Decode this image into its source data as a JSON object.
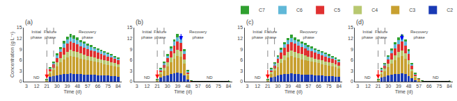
{
  "chart_data": [
    {
      "type": "bar",
      "stacked": true,
      "title": "(a)",
      "x": [
        3,
        12,
        21,
        24,
        27,
        30,
        33,
        36,
        39,
        42,
        45,
        48,
        51,
        54,
        57,
        60,
        63,
        66,
        69,
        72,
        75,
        78,
        81,
        84
      ],
      "series": [
        {
          "name": "C2",
          "color": "#1a3ab5",
          "values": [
            0,
            0,
            0.15,
            1.3,
            1.5,
            1.8,
            2.0,
            2.1,
            2.2,
            2.3,
            2.2,
            2.2,
            2.1,
            2.0,
            2.0,
            1.9,
            1.9,
            1.8,
            1.8,
            1.7,
            1.7,
            1.6,
            1.5,
            1.4
          ]
        },
        {
          "name": "C3",
          "color": "#c8a030",
          "values": [
            0,
            0,
            0.2,
            1.1,
            1.7,
            2.5,
            3.3,
            4.0,
            4.6,
            4.9,
            4.7,
            4.5,
            4.3,
            4.1,
            3.9,
            3.8,
            3.6,
            3.5,
            3.3,
            3.2,
            3.0,
            2.9,
            2.7,
            2.6
          ]
        },
        {
          "name": "C4",
          "color": "#b8c870",
          "values": [
            0,
            0,
            0.05,
            0.5,
            0.7,
            1.0,
            1.2,
            1.4,
            1.5,
            1.6,
            1.6,
            1.5,
            1.4,
            1.4,
            1.3,
            1.2,
            1.2,
            1.1,
            1.1,
            1.0,
            1.0,
            0.9,
            0.9,
            0.8
          ]
        },
        {
          "name": "C5",
          "color": "#e03030",
          "values": [
            0,
            0,
            0.1,
            0.6,
            0.9,
            1.3,
            1.7,
            2.0,
            2.2,
            2.4,
            2.3,
            2.2,
            2.1,
            2.0,
            1.9,
            1.8,
            1.7,
            1.6,
            1.5,
            1.4,
            1.3,
            1.3,
            1.2,
            1.1
          ]
        },
        {
          "name": "C6",
          "color": "#60b8d8",
          "values": [
            0,
            0,
            0.05,
            0.3,
            0.5,
            0.7,
            0.9,
            1.1,
            1.2,
            1.2,
            1.2,
            1.1,
            1.0,
            1.0,
            0.9,
            0.9,
            0.8,
            0.8,
            0.7,
            0.7,
            0.7,
            0.6,
            0.6,
            0.5
          ]
        },
        {
          "name": "C7",
          "color": "#30a030",
          "values": [
            0,
            0,
            0.05,
            0.2,
            0.3,
            0.5,
            0.6,
            0.7,
            0.8,
            0.9,
            0.8,
            0.8,
            0.7,
            0.7,
            0.6,
            0.6,
            0.5,
            0.5,
            0.5,
            0.4,
            0.4,
            0.4,
            0.3,
            0.3
          ]
        }
      ],
      "xlabel": "Time (d)",
      "ylabel": "Concentration (g L⁻¹)",
      "xlim": [
        0.5,
        87
      ],
      "xticks": [
        3,
        12,
        21,
        30,
        39,
        48,
        57,
        66,
        75,
        84
      ],
      "ylim": [
        0,
        15
      ],
      "yticks": [
        0,
        3,
        6,
        9,
        12,
        15
      ],
      "grid": false,
      "legend": "upper right",
      "vlines": [
        {
          "x": 21,
          "color": "#888888"
        },
        {
          "x": 27,
          "color": "#888888"
        }
      ],
      "annotations": [
        {
          "text": "Initial\nphase",
          "x": 12,
          "y": 14.8
        },
        {
          "text": "Failure\nphase",
          "x": 24,
          "y": 14.8
        },
        {
          "text": "Recovery\nphase",
          "x": 57,
          "y": 14.8
        },
        {
          "text": "ND",
          "x": 12,
          "y": 0.25
        }
      ],
      "arrows": [
        {
          "x": 21,
          "y_start": 3.8,
          "y_end": 0.8,
          "color": "red"
        }
      ]
    },
    {
      "type": "bar",
      "stacked": true,
      "title": "(b)",
      "x": [
        3,
        12,
        21,
        24,
        27,
        30,
        33,
        36,
        39,
        42,
        45,
        48,
        51,
        54,
        57,
        60,
        63,
        66,
        69,
        72,
        75,
        78,
        81,
        84
      ],
      "series": [
        {
          "name": "C2",
          "color": "#1a3ab5",
          "values": [
            0,
            0,
            0.15,
            1.2,
            1.5,
            1.8,
            2.1,
            2.3,
            2.5,
            2.4,
            1.8,
            0.6,
            0.05,
            0.02,
            0.02,
            0.02,
            0.02,
            0.02,
            0.02,
            0.02,
            0.02,
            0.02,
            0.02,
            0.02
          ]
        },
        {
          "name": "C3",
          "color": "#c8a030",
          "values": [
            0,
            0,
            0.2,
            1.0,
            1.6,
            2.4,
            3.2,
            4.0,
            4.7,
            4.5,
            3.2,
            1.1,
            0.08,
            0.04,
            0.03,
            0.03,
            0.03,
            0.03,
            0.03,
            0.03,
            0.03,
            0.03,
            0.03,
            0.03
          ]
        },
        {
          "name": "C4",
          "color": "#b8c870",
          "values": [
            0,
            0,
            0.05,
            0.5,
            0.8,
            1.1,
            1.4,
            1.6,
            1.7,
            1.6,
            1.1,
            0.4,
            0.03,
            0.02,
            0.01,
            0.01,
            0.01,
            0.01,
            0.01,
            0.01,
            0.01,
            0.01,
            0.01,
            0.01
          ]
        },
        {
          "name": "C5",
          "color": "#e03030",
          "values": [
            0,
            0,
            0.1,
            0.5,
            0.8,
            1.2,
            1.7,
            2.1,
            2.3,
            2.2,
            1.6,
            0.5,
            0.04,
            0.02,
            0.01,
            0.01,
            0.01,
            0.01,
            0.01,
            0.01,
            0.01,
            0.01,
            0.01,
            0.01
          ]
        },
        {
          "name": "C6",
          "color": "#60b8d8",
          "values": [
            0,
            0,
            0.05,
            0.3,
            0.5,
            0.7,
            0.9,
            1.1,
            1.2,
            1.2,
            0.8,
            0.3,
            0.02,
            0.01,
            0.01,
            0.01,
            0.01,
            0.01,
            0.01,
            0.01,
            0.01,
            0.01,
            0.01,
            0.01
          ]
        },
        {
          "name": "C7",
          "color": "#30a030",
          "values": [
            0,
            0,
            0.05,
            0.2,
            0.3,
            0.5,
            0.6,
            0.7,
            0.8,
            0.8,
            0.5,
            0.2,
            0.02,
            0.01,
            0.01,
            0.01,
            0.01,
            0.01,
            0.01,
            0.01,
            0.01,
            0.01,
            0.01,
            0.01
          ]
        }
      ],
      "xlabel": "Time (d)",
      "xlim": [
        0.5,
        87
      ],
      "xticks": [
        3,
        12,
        21,
        30,
        39,
        48,
        57,
        66,
        75,
        84
      ],
      "ylim": [
        0,
        15
      ],
      "yticks": [
        0,
        3,
        6,
        9,
        12,
        15
      ],
      "grid": false,
      "vlines": [
        {
          "x": 21,
          "color": "#888888"
        },
        {
          "x": 27,
          "color": "#888888"
        }
      ],
      "annotations": [
        {
          "text": "Initial\nphase",
          "x": 12,
          "y": 14.8
        },
        {
          "text": "Failure\nphase",
          "x": 24,
          "y": 14.8
        },
        {
          "text": "Recovery\nphase",
          "x": 57,
          "y": 14.8
        },
        {
          "text": "ND",
          "x": 12,
          "y": 0.25
        },
        {
          "text": "ND",
          "x": 67.5,
          "y": 0.25
        }
      ],
      "arrows": [
        {
          "x": 21,
          "y_start": 3.5,
          "y_end": 0.8,
          "color": "red"
        },
        {
          "x": 42,
          "y_start": 13.5,
          "y_end": 11.5,
          "color": "blue"
        }
      ],
      "brackets": [
        {
          "x_start": 51,
          "x_end": 84,
          "y": 0.08,
          "y_end": 0.33,
          "color": "black"
        }
      ]
    },
    {
      "type": "bar",
      "stacked": true,
      "title": "(c)",
      "x": [
        3,
        12,
        21,
        24,
        27,
        30,
        33,
        36,
        39,
        42,
        45,
        48,
        51,
        54,
        57,
        60,
        63,
        66,
        69,
        72,
        75,
        78,
        81,
        84
      ],
      "series": [
        {
          "name": "C2",
          "color": "#1a3ab5",
          "values": [
            0,
            0,
            0.15,
            1.2,
            1.4,
            1.7,
            2.0,
            2.1,
            2.2,
            2.3,
            2.2,
            2.1,
            2.0,
            2.0,
            1.9,
            1.9,
            1.8,
            1.7,
            1.7,
            1.6,
            1.5,
            1.5,
            1.4,
            1.3
          ]
        },
        {
          "name": "C3",
          "color": "#c8a030",
          "values": [
            0,
            0,
            0.2,
            1.0,
            1.6,
            2.4,
            3.2,
            3.9,
            4.5,
            4.8,
            4.6,
            4.4,
            4.2,
            4.0,
            3.8,
            3.7,
            3.5,
            3.4,
            3.2,
            3.0,
            2.9,
            2.7,
            2.6,
            2.4
          ]
        },
        {
          "name": "C4",
          "color": "#b8c870",
          "values": [
            0,
            0,
            0.05,
            0.5,
            0.7,
            1.0,
            1.2,
            1.4,
            1.5,
            1.6,
            1.5,
            1.4,
            1.4,
            1.3,
            1.2,
            1.2,
            1.1,
            1.1,
            1.0,
            1.0,
            0.9,
            0.9,
            0.8,
            0.7
          ]
        },
        {
          "name": "C5",
          "color": "#e03030",
          "values": [
            0,
            0,
            0.1,
            0.5,
            0.8,
            1.2,
            1.6,
            2.0,
            2.2,
            2.3,
            2.2,
            2.1,
            2.0,
            1.9,
            1.8,
            1.7,
            1.6,
            1.5,
            1.4,
            1.3,
            1.3,
            1.2,
            1.1,
            1.0
          ]
        },
        {
          "name": "C6",
          "color": "#60b8d8",
          "values": [
            0,
            0,
            0.05,
            0.3,
            0.5,
            0.7,
            0.9,
            1.0,
            1.1,
            1.2,
            1.1,
            1.1,
            1.0,
            0.9,
            0.9,
            0.8,
            0.8,
            0.7,
            0.7,
            0.7,
            0.6,
            0.6,
            0.5,
            0.5
          ]
        },
        {
          "name": "C7",
          "color": "#30a030",
          "values": [
            0,
            0,
            0.05,
            0.2,
            0.3,
            0.4,
            0.5,
            0.6,
            0.7,
            0.8,
            0.7,
            0.7,
            0.6,
            0.6,
            0.6,
            0.5,
            0.5,
            0.5,
            0.4,
            0.4,
            0.4,
            0.3,
            0.3,
            0.3
          ]
        }
      ],
      "xlabel": "Time (d)",
      "xlim": [
        0.5,
        87
      ],
      "xticks": [
        3,
        12,
        21,
        30,
        39,
        48,
        57,
        66,
        75,
        84
      ],
      "ylim": [
        0,
        15
      ],
      "yticks": [
        0,
        3,
        6,
        9,
        12,
        15
      ],
      "grid": false,
      "vlines": [
        {
          "x": 21,
          "color": "#888888"
        },
        {
          "x": 27,
          "color": "#888888"
        }
      ],
      "annotations": [
        {
          "text": "Initial\nphase",
          "x": 12,
          "y": 14.8
        },
        {
          "text": "Failure\nphase",
          "x": 24,
          "y": 14.8
        },
        {
          "text": "Recovery\nphase",
          "x": 57,
          "y": 14.8
        },
        {
          "text": "ND",
          "x": 12,
          "y": 0.25
        }
      ],
      "arrows": [
        {
          "x": 21,
          "y_start": 3.5,
          "y_end": 0.8,
          "color": "red"
        }
      ]
    },
    {
      "type": "bar",
      "stacked": true,
      "title": "(d)",
      "x": [
        3,
        12,
        21,
        24,
        27,
        30,
        33,
        36,
        39,
        42,
        45,
        48,
        51,
        54,
        57,
        60,
        63,
        66,
        69,
        72,
        75,
        78,
        81,
        84
      ],
      "series": [
        {
          "name": "C2",
          "color": "#1a3ab5",
          "values": [
            0,
            0,
            0.15,
            1.2,
            1.4,
            1.7,
            2.0,
            2.1,
            2.2,
            2.3,
            2.1,
            1.6,
            0.9,
            0.4,
            0.15,
            0.06,
            0.03,
            0.02,
            0.02,
            0.02,
            0.02,
            0.02,
            0.02,
            0.02
          ]
        },
        {
          "name": "C3",
          "color": "#c8a030",
          "values": [
            0,
            0,
            0.2,
            1.0,
            1.5,
            2.3,
            3.0,
            3.8,
            4.5,
            4.8,
            4.3,
            3.3,
            1.9,
            0.9,
            0.35,
            0.12,
            0.05,
            0.04,
            0.03,
            0.03,
            0.03,
            0.03,
            0.03,
            0.03
          ]
        },
        {
          "name": "C4",
          "color": "#b8c870",
          "values": [
            0,
            0,
            0.05,
            0.5,
            0.7,
            1.0,
            1.2,
            1.4,
            1.5,
            1.6,
            1.4,
            1.1,
            0.6,
            0.3,
            0.1,
            0.04,
            0.02,
            0.01,
            0.01,
            0.01,
            0.01,
            0.01,
            0.01,
            0.01
          ]
        },
        {
          "name": "C5",
          "color": "#e03030",
          "values": [
            0,
            0,
            0.1,
            0.5,
            0.8,
            1.2,
            1.6,
            2.0,
            2.2,
            2.4,
            2.2,
            1.7,
            1.0,
            0.45,
            0.18,
            0.07,
            0.03,
            0.02,
            0.01,
            0.01,
            0.01,
            0.01,
            0.01,
            0.01
          ]
        },
        {
          "name": "C6",
          "color": "#60b8d8",
          "values": [
            0,
            0,
            0.05,
            0.3,
            0.5,
            0.7,
            0.9,
            1.0,
            1.1,
            1.2,
            1.1,
            0.8,
            0.5,
            0.2,
            0.08,
            0.03,
            0.01,
            0.01,
            0.01,
            0.01,
            0.01,
            0.01,
            0.01,
            0.01
          ]
        },
        {
          "name": "C7",
          "color": "#30a030",
          "values": [
            0,
            0,
            0.05,
            0.2,
            0.3,
            0.5,
            0.6,
            0.7,
            0.8,
            0.8,
            0.7,
            0.5,
            0.3,
            0.12,
            0.05,
            0.02,
            0.01,
            0.01,
            0.01,
            0.01,
            0.01,
            0.01,
            0.01,
            0.01
          ]
        }
      ],
      "xlabel": "Time (d)",
      "xlim": [
        0.5,
        87
      ],
      "xticks": [
        3,
        12,
        21,
        30,
        39,
        48,
        57,
        66,
        75,
        84
      ],
      "ylim": [
        0,
        15
      ],
      "yticks": [
        0,
        3,
        6,
        9,
        12,
        15
      ],
      "grid": false,
      "vlines": [
        {
          "x": 21,
          "color": "#888888"
        },
        {
          "x": 27,
          "color": "#888888"
        }
      ],
      "annotations": [
        {
          "text": "Initial\nphase",
          "x": 12,
          "y": 14.8
        },
        {
          "text": "Failure\nphase",
          "x": 24,
          "y": 14.8
        },
        {
          "text": "Recovery\nphase",
          "x": 57,
          "y": 14.8
        },
        {
          "text": "ND",
          "x": 12,
          "y": 0.25
        },
        {
          "text": "ND",
          "x": 72,
          "y": 0.25
        }
      ],
      "arrows": [
        {
          "x": 21,
          "y_start": 3.5,
          "y_end": 0.8,
          "color": "red"
        },
        {
          "x": 42,
          "y_start": 13.5,
          "y_end": 11.5,
          "color": "blue"
        }
      ],
      "brackets": [
        {
          "x_start": 60,
          "x_end": 84,
          "y": 0.08,
          "y_end": 0.33,
          "color": "black"
        }
      ]
    }
  ]
}
